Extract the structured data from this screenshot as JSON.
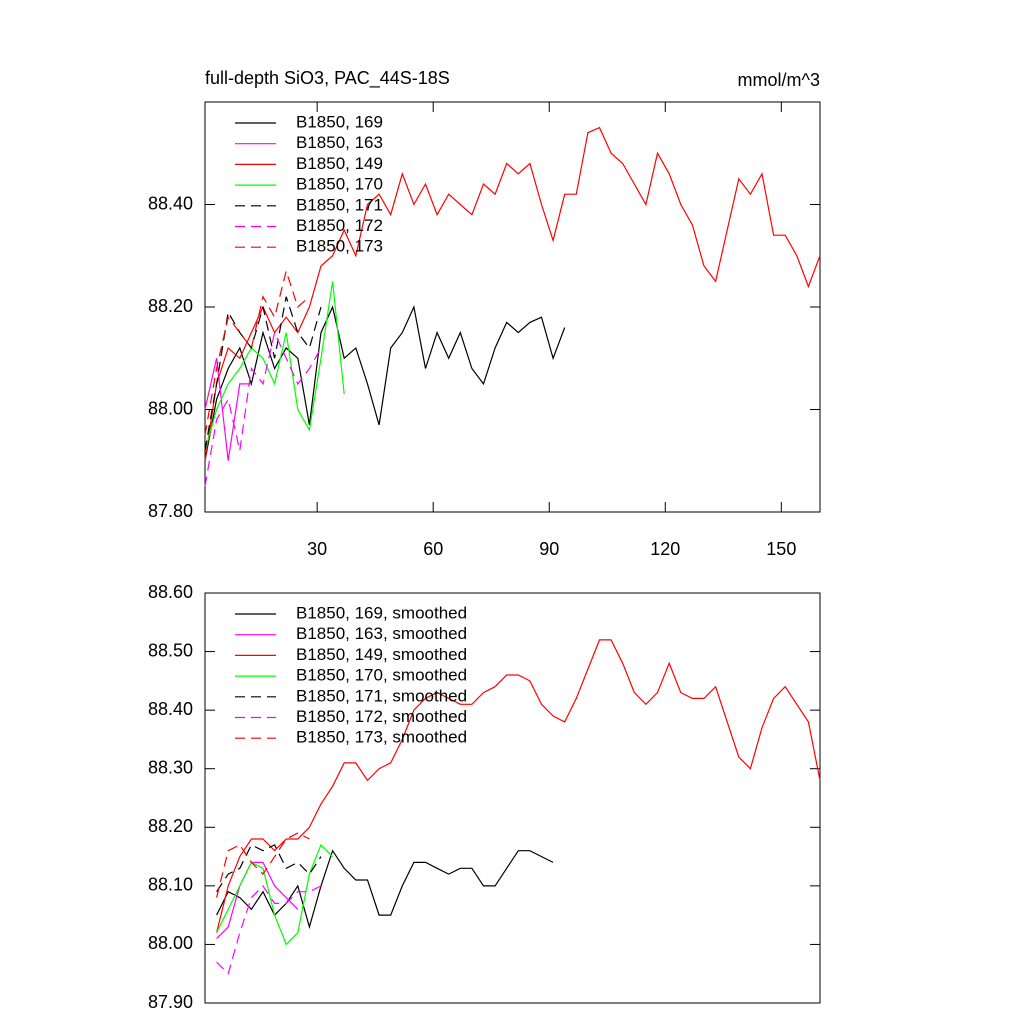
{
  "chart_data": [
    {
      "type": "line",
      "title": "full-depth SiO3, PAC_44S-18S",
      "units": "mmol/m^3",
      "x": [
        1,
        4,
        7,
        10,
        13,
        16,
        19,
        22,
        25,
        28,
        31,
        34,
        37,
        40,
        43,
        46,
        49,
        52,
        55,
        58,
        61,
        64,
        67,
        70,
        73,
        76,
        79,
        82,
        85,
        88,
        91,
        94,
        97,
        100,
        103,
        106,
        109,
        112,
        115,
        118,
        121,
        124,
        127,
        130,
        133,
        136,
        139,
        142,
        145,
        148,
        151,
        154,
        157,
        160
      ],
      "xlim": [
        1,
        160
      ],
      "xticks": [
        30,
        60,
        90,
        120,
        150
      ],
      "ylim": [
        87.8,
        88.6
      ],
      "yticks": [
        {
          "value": 87.8,
          "label": "87.80"
        },
        {
          "value": 88.0,
          "label": "88.00"
        },
        {
          "value": 88.2,
          "label": "88.20"
        },
        {
          "value": 88.4,
          "label": "88.40"
        }
      ],
      "legend": "upper left",
      "series": [
        {
          "name": "B1850, 169",
          "color": "#000000",
          "style": "solid",
          "values": [
            87.9,
            88.02,
            88.08,
            88.12,
            88.05,
            88.15,
            88.08,
            88.12,
            88.1,
            87.97,
            88.15,
            88.2,
            88.1,
            88.12,
            88.05,
            87.97,
            88.12,
            88.15,
            88.2,
            88.08,
            88.15,
            88.1,
            88.15,
            88.08,
            88.05,
            88.12,
            88.17,
            88.15,
            88.17,
            88.18,
            88.1,
            88.16,
            null,
            null,
            null,
            null,
            null,
            null,
            null,
            null,
            null,
            null,
            null,
            null,
            null,
            null,
            null,
            null,
            null,
            null,
            null,
            null,
            null,
            null
          ]
        },
        {
          "name": "B1850, 163",
          "color": "#ff00ff",
          "style": "solid",
          "values": [
            88.0,
            88.1,
            87.9,
            88.05,
            88.05,
            null,
            null,
            null,
            null,
            null,
            null,
            null,
            null,
            null,
            null,
            null,
            null,
            null,
            null,
            null,
            null,
            null,
            null,
            null,
            null,
            null,
            null,
            null,
            null,
            null,
            null,
            null,
            null,
            null,
            null,
            null,
            null,
            null,
            null,
            null,
            null,
            null,
            null,
            null,
            null,
            null,
            null,
            null,
            null,
            null,
            null,
            null,
            null,
            null
          ]
        },
        {
          "name": "B1850, 149",
          "color": "#ff0000",
          "style": "solid",
          "values": [
            87.9,
            88.05,
            88.12,
            88.1,
            88.15,
            88.2,
            88.15,
            88.18,
            88.15,
            88.2,
            88.28,
            88.3,
            88.35,
            88.3,
            88.4,
            88.42,
            88.38,
            88.46,
            88.4,
            88.44,
            88.38,
            88.42,
            88.4,
            88.38,
            88.44,
            88.42,
            88.48,
            88.46,
            88.48,
            88.4,
            88.33,
            88.42,
            88.42,
            88.54,
            88.55,
            88.5,
            88.48,
            88.44,
            88.4,
            88.5,
            88.46,
            88.4,
            88.36,
            88.28,
            88.25,
            88.35,
            88.45,
            88.42,
            88.46,
            88.34,
            88.34,
            88.3,
            88.24,
            88.3
          ]
        },
        {
          "name": "B1850, 170",
          "color": "#00ff00",
          "style": "solid",
          "values": [
            87.92,
            88.0,
            88.05,
            88.08,
            88.12,
            88.1,
            88.05,
            88.15,
            88.0,
            87.96,
            88.1,
            88.25,
            88.03,
            null,
            null,
            null,
            null,
            null,
            null,
            null,
            null,
            null,
            null,
            null,
            null,
            null,
            null,
            null,
            null,
            null,
            null,
            null,
            null,
            null,
            null,
            null,
            null,
            null,
            null,
            null,
            null,
            null,
            null,
            null,
            null,
            null,
            null,
            null,
            null,
            null,
            null,
            null,
            null,
            null
          ]
        },
        {
          "name": "B1850, 171",
          "color": "#000000",
          "style": "dashed",
          "values": [
            87.92,
            88.05,
            88.19,
            88.15,
            88.12,
            88.2,
            88.1,
            88.22,
            88.15,
            88.12,
            88.2,
            null,
            null,
            null,
            null,
            null,
            null,
            null,
            null,
            null,
            null,
            null,
            null,
            null,
            null,
            null,
            null,
            null,
            null,
            null,
            null,
            null,
            null,
            null,
            null,
            null,
            null,
            null,
            null,
            null,
            null,
            null,
            null,
            null,
            null,
            null,
            null,
            null,
            null,
            null,
            null,
            null,
            null,
            null
          ]
        },
        {
          "name": "B1850, 172",
          "color": "#ff00ff",
          "style": "dashed",
          "values": [
            87.85,
            87.98,
            88.02,
            87.92,
            88.08,
            88.05,
            88.15,
            88.1,
            88.05,
            88.08,
            88.12,
            null,
            null,
            null,
            null,
            null,
            null,
            null,
            null,
            null,
            null,
            null,
            null,
            null,
            null,
            null,
            null,
            null,
            null,
            null,
            null,
            null,
            null,
            null,
            null,
            null,
            null,
            null,
            null,
            null,
            null,
            null,
            null,
            null,
            null,
            null,
            null,
            null,
            null,
            null,
            null,
            null,
            null,
            null
          ]
        },
        {
          "name": "B1850, 173",
          "color": "#ff0000",
          "style": "dashed",
          "values": [
            87.95,
            88.08,
            88.18,
            88.15,
            88.12,
            88.22,
            88.18,
            88.27,
            88.2,
            88.22,
            null,
            null,
            null,
            null,
            null,
            null,
            null,
            null,
            null,
            null,
            null,
            null,
            null,
            null,
            null,
            null,
            null,
            null,
            null,
            null,
            null,
            null,
            null,
            null,
            null,
            null,
            null,
            null,
            null,
            null,
            null,
            null,
            null,
            null,
            null,
            null,
            null,
            null,
            null,
            null,
            null,
            null,
            null,
            null
          ]
        }
      ]
    },
    {
      "type": "line",
      "x": [
        1,
        4,
        7,
        10,
        13,
        16,
        19,
        22,
        25,
        28,
        31,
        34,
        37,
        40,
        43,
        46,
        49,
        52,
        55,
        58,
        61,
        64,
        67,
        70,
        73,
        76,
        79,
        82,
        85,
        88,
        91,
        94,
        97,
        100,
        103,
        106,
        109,
        112,
        115,
        118,
        121,
        124,
        127,
        130,
        133,
        136,
        139,
        142,
        145,
        148,
        151,
        154,
        157,
        160
      ],
      "xlim": [
        1,
        160
      ],
      "ylim": [
        87.9,
        88.6
      ],
      "yticks": [
        {
          "value": 87.9,
          "label": "87.90"
        },
        {
          "value": 88.0,
          "label": "88.00"
        },
        {
          "value": 88.1,
          "label": "88.10"
        },
        {
          "value": 88.2,
          "label": "88.20"
        },
        {
          "value": 88.3,
          "label": "88.30"
        },
        {
          "value": 88.4,
          "label": "88.40"
        },
        {
          "value": 88.5,
          "label": "88.50"
        },
        {
          "value": 88.6,
          "label": "88.60"
        }
      ],
      "legend": "upper left",
      "series": [
        {
          "name": "B1850, 169, smoothed",
          "color": "#000000",
          "style": "solid",
          "values": [
            null,
            88.05,
            88.09,
            88.08,
            88.06,
            88.09,
            88.05,
            88.07,
            88.1,
            88.03,
            88.1,
            88.16,
            88.13,
            88.11,
            88.11,
            88.05,
            88.05,
            88.1,
            88.14,
            88.14,
            88.13,
            88.12,
            88.13,
            88.13,
            88.1,
            88.1,
            88.13,
            88.16,
            88.16,
            88.15,
            88.14,
            null,
            null,
            null,
            null,
            null,
            null,
            null,
            null,
            null,
            null,
            null,
            null,
            null,
            null,
            null,
            null,
            null,
            null,
            null,
            null,
            null,
            null,
            null
          ]
        },
        {
          "name": "B1850, 163, smoothed",
          "color": "#ff00ff",
          "style": "solid",
          "values": [
            null,
            88.01,
            88.03,
            88.1,
            88.14,
            88.14,
            88.1,
            88.08,
            88.06,
            null,
            null,
            null,
            null,
            null,
            null,
            null,
            null,
            null,
            null,
            null,
            null,
            null,
            null,
            null,
            null,
            null,
            null,
            null,
            null,
            null,
            null,
            null,
            null,
            null,
            null,
            null,
            null,
            null,
            null,
            null,
            null,
            null,
            null,
            null,
            null,
            null,
            null,
            null,
            null,
            null,
            null,
            null,
            null,
            null
          ]
        },
        {
          "name": "B1850, 149, smoothed",
          "color": "#ff0000",
          "style": "solid",
          "values": [
            null,
            88.02,
            88.1,
            88.15,
            88.18,
            88.18,
            88.16,
            88.18,
            88.18,
            88.2,
            88.24,
            88.27,
            88.31,
            88.31,
            88.28,
            88.3,
            88.31,
            88.35,
            88.4,
            88.42,
            88.43,
            88.42,
            88.41,
            88.41,
            88.43,
            88.44,
            88.46,
            88.46,
            88.45,
            88.41,
            88.39,
            88.38,
            88.42,
            88.47,
            88.52,
            88.52,
            88.48,
            88.43,
            88.41,
            88.43,
            88.48,
            88.43,
            88.42,
            88.42,
            88.44,
            88.38,
            88.32,
            88.3,
            88.37,
            88.42,
            88.44,
            88.41,
            88.38,
            88.28
          ]
        },
        {
          "name": "B1850, 170, smoothed",
          "color": "#00ff00",
          "style": "solid",
          "values": [
            null,
            88.02,
            88.06,
            88.1,
            88.14,
            88.13,
            88.05,
            88.0,
            88.02,
            88.12,
            88.17,
            88.15,
            null,
            null,
            null,
            null,
            null,
            null,
            null,
            null,
            null,
            null,
            null,
            null,
            null,
            null,
            null,
            null,
            null,
            null,
            null,
            null,
            null,
            null,
            null,
            null,
            null,
            null,
            null,
            null,
            null,
            null,
            null,
            null,
            null,
            null,
            null,
            null,
            null,
            null,
            null,
            null,
            null,
            null
          ]
        },
        {
          "name": "B1850, 171, smoothed",
          "color": "#000000",
          "style": "dashed",
          "values": [
            null,
            88.09,
            88.12,
            88.13,
            88.17,
            88.16,
            88.17,
            88.13,
            88.14,
            88.12,
            88.15,
            null,
            null,
            null,
            null,
            null,
            null,
            null,
            null,
            null,
            null,
            null,
            null,
            null,
            null,
            null,
            null,
            null,
            null,
            null,
            null,
            null,
            null,
            null,
            null,
            null,
            null,
            null,
            null,
            null,
            null,
            null,
            null,
            null,
            null,
            null,
            null,
            null,
            null,
            null,
            null,
            null,
            null,
            null
          ]
        },
        {
          "name": "B1850, 172, smoothed",
          "color": "#ff00ff",
          "style": "dashed",
          "values": [
            null,
            87.97,
            87.95,
            88.02,
            88.08,
            88.1,
            88.07,
            88.07,
            88.09,
            88.09,
            88.1,
            null,
            null,
            null,
            null,
            null,
            null,
            null,
            null,
            null,
            null,
            null,
            null,
            null,
            null,
            null,
            null,
            null,
            null,
            null,
            null,
            null,
            null,
            null,
            null,
            null,
            null,
            null,
            null,
            null,
            null,
            null,
            null,
            null,
            null,
            null,
            null,
            null,
            null,
            null,
            null,
            null,
            null,
            null
          ]
        },
        {
          "name": "B1850, 173, smoothed",
          "color": "#ff0000",
          "style": "dashed",
          "values": [
            null,
            88.08,
            88.16,
            88.17,
            88.14,
            88.12,
            88.15,
            88.18,
            88.19,
            88.18,
            null,
            null,
            null,
            null,
            null,
            null,
            null,
            null,
            null,
            null,
            null,
            null,
            null,
            null,
            null,
            null,
            null,
            null,
            null,
            null,
            null,
            null,
            null,
            null,
            null,
            null,
            null,
            null,
            null,
            null,
            null,
            null,
            null,
            null,
            null,
            null,
            null,
            null,
            null,
            null,
            null,
            null,
            null,
            null
          ]
        }
      ]
    }
  ]
}
